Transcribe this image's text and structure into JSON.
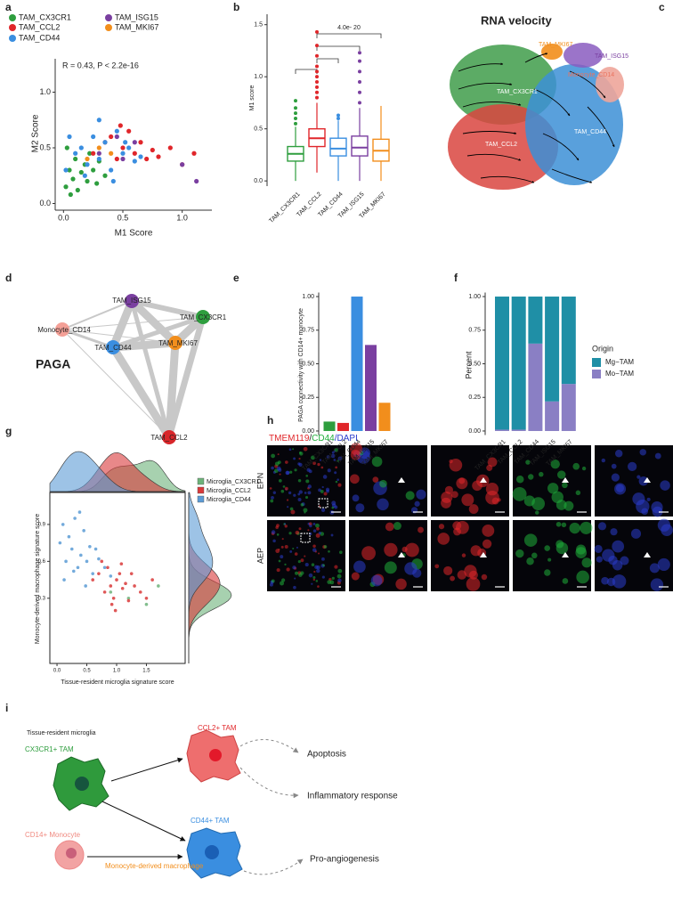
{
  "panel_labels": [
    "a",
    "b",
    "c",
    "d",
    "e",
    "f",
    "g",
    "h",
    "i"
  ],
  "chart_data": [
    {
      "type": "scatter",
      "xlabel": "M1 Score",
      "ylabel": "M2 Score",
      "annotation": "R = 0.43, P < 2.2e-16",
      "xlim": [
        -0.07,
        1.25
      ],
      "ylim": [
        -0.06,
        1.3
      ],
      "xticks": [
        {
          "value": 0,
          "label": "0.0"
        },
        {
          "value": 0.5,
          "label": "0.5"
        },
        {
          "value": 1,
          "label": "1.0"
        }
      ],
      "yticks": [
        {
          "value": 0,
          "label": "0.0"
        },
        {
          "value": 0.5,
          "label": "0.5"
        },
        {
          "value": 1,
          "label": "1.0"
        }
      ],
      "series": [
        {
          "name": "TAM_CX3CR1",
          "color": "#2e9e3e",
          "x": [
            0.02,
            0.05,
            0.08,
            0.1,
            0.12,
            0.15,
            0.18,
            0.2,
            0.22,
            0.25,
            0.28,
            0.3,
            0.03,
            0.06,
            0.35
          ],
          "values": [
            0.15,
            0.3,
            0.22,
            0.4,
            0.12,
            0.28,
            0.35,
            0.2,
            0.45,
            0.3,
            0.18,
            0.38,
            0.5,
            0.08,
            0.25
          ]
        },
        {
          "name": "TAM_CCL2",
          "color": "#e0262a",
          "x": [
            0.25,
            0.35,
            0.4,
            0.45,
            0.5,
            0.55,
            0.6,
            0.65,
            0.7,
            0.75,
            0.8,
            0.9,
            1.0,
            1.1,
            0.48
          ],
          "values": [
            0.45,
            0.55,
            0.6,
            0.4,
            0.5,
            0.65,
            0.45,
            0.55,
            0.4,
            0.48,
            0.42,
            0.5,
            0.35,
            0.45,
            0.7
          ]
        },
        {
          "name": "TAM_CD44",
          "color": "#3a8ee0",
          "x": [
            0.02,
            0.1,
            0.15,
            0.2,
            0.25,
            0.3,
            0.35,
            0.4,
            0.45,
            0.5,
            0.55,
            0.6,
            0.65,
            0.05,
            0.3,
            0.42,
            0.18,
            0.52
          ],
          "values": [
            0.3,
            0.45,
            0.5,
            0.35,
            0.6,
            0.4,
            0.55,
            0.3,
            0.65,
            0.45,
            0.5,
            0.38,
            0.42,
            0.6,
            0.75,
            0.2,
            0.25,
            0.55
          ]
        },
        {
          "name": "TAM_ISG15",
          "color": "#7a3fa0",
          "x": [
            0.3,
            0.45,
            0.6,
            1.0,
            1.12,
            0.5
          ],
          "values": [
            0.45,
            0.6,
            0.55,
            0.35,
            0.2,
            0.4
          ]
        },
        {
          "name": "TAM_MKI67",
          "color": "#f28e1c",
          "x": [
            0.2,
            0.3,
            0.4
          ],
          "values": [
            0.4,
            0.5,
            0.45
          ]
        }
      ]
    },
    {
      "type": "box",
      "ylabel": "M1 score",
      "annotation": "4.0e- 20",
      "ylim": [
        -0.05,
        1.6
      ],
      "yticks": [
        {
          "value": 0,
          "label": "0.0"
        },
        {
          "value": 0.5,
          "label": "0.5"
        },
        {
          "value": 1,
          "label": "1.0"
        },
        {
          "value": 1.5,
          "label": "1.5"
        }
      ],
      "series": [
        {
          "name": "TAM_CX3CR1",
          "color": "#2e9e3e",
          "min": 0.0,
          "q1": 0.19,
          "median": 0.26,
          "q3": 0.33,
          "max": 0.52,
          "outliers": [
            0.55,
            0.6,
            0.65,
            0.7,
            0.77
          ]
        },
        {
          "name": "TAM_CCL2",
          "color": "#e0262a",
          "min": 0.08,
          "q1": 0.33,
          "median": 0.41,
          "q3": 0.5,
          "max": 0.75,
          "outliers": [
            0.8,
            0.85,
            0.9,
            0.95,
            1.0,
            1.05,
            1.1,
            1.2,
            1.3,
            1.43
          ]
        },
        {
          "name": "TAM_CD44",
          "color": "#3a8ee0",
          "min": 0.0,
          "q1": 0.24,
          "median": 0.31,
          "q3": 0.41,
          "max": 0.58,
          "outliers": [
            0.6,
            0.63
          ]
        },
        {
          "name": "TAM_ISG15",
          "color": "#7a3fa0",
          "min": 0.0,
          "q1": 0.24,
          "median": 0.32,
          "q3": 0.43,
          "max": 0.7,
          "outliers": [
            0.75,
            0.85,
            0.95,
            1.05,
            1.15,
            1.23
          ]
        },
        {
          "name": "TAM_MKI67",
          "color": "#f28e1c",
          "min": 0.0,
          "q1": 0.19,
          "median": 0.29,
          "q3": 0.4,
          "max": 0.72,
          "outliers": []
        }
      ]
    },
    {
      "type": "bar",
      "ylabel": "PAGA connectivity with CD14+ monocyte",
      "categories": [
        "TAM_CX3CR1",
        "TAM_CCL2",
        "TAM_CD44",
        "TAM_ISG15",
        "TAM_MKI67"
      ],
      "values": [
        0.07,
        0.06,
        1.0,
        0.64,
        0.21
      ],
      "colors": [
        "#2e9e3e",
        "#e0262a",
        "#3a8ee0",
        "#7a3fa0",
        "#f28e1c"
      ],
      "ylim": [
        -0.03,
        1.03
      ],
      "yticks": [
        {
          "value": 0,
          "label": "0.00"
        },
        {
          "value": 0.25,
          "label": "0.25"
        },
        {
          "value": 0.5,
          "label": "0.50"
        },
        {
          "value": 0.75,
          "label": "0.75"
        },
        {
          "value": 1,
          "label": "1.00"
        }
      ]
    },
    {
      "type": "stacked_bar",
      "ylabel": "Percent",
      "legend_title": "Origin",
      "categories": [
        "TAM_CX3CR1",
        "TAM_CCL2",
        "TAM_CD44",
        "TAM_ISG15",
        "TAM_MKI67"
      ],
      "series": [
        {
          "name": "Mg−TAM",
          "color": "#1f8fa6",
          "values": [
            0.99,
            0.99,
            0.35,
            0.78,
            0.65
          ]
        },
        {
          "name": "Mo−TAM",
          "color": "#8a7fc4",
          "values": [
            0.01,
            0.01,
            0.65,
            0.22,
            0.35
          ]
        }
      ],
      "ylim": [
        -0.03,
        1.03
      ],
      "yticks": [
        {
          "value": 0,
          "label": "0.00"
        },
        {
          "value": 0.25,
          "label": "0.25"
        },
        {
          "value": 0.5,
          "label": "0.50"
        },
        {
          "value": 0.75,
          "label": "0.75"
        },
        {
          "value": 1,
          "label": "1.00"
        }
      ]
    },
    {
      "type": "scatter_density",
      "xlabel": "Tissue-resident microglia signature score",
      "ylabel": "Monocyte-derived macrophage signature score",
      "xlim": [
        -0.12,
        2.15
      ],
      "ylim": [
        -0.23,
        1.16
      ],
      "xticks": [
        {
          "value": 0,
          "label": "0.0"
        },
        {
          "value": 0.5,
          "label": "0.5"
        },
        {
          "value": 1,
          "label": "1.0"
        },
        {
          "value": 1.5,
          "label": "1.5"
        }
      ],
      "yticks": [
        0.3,
        0.6,
        0.9
      ],
      "series": [
        {
          "name": "Microglia_CX3CR1",
          "color": "#6db37a",
          "x": [
            0.9,
            1.2,
            1.5,
            1.7
          ],
          "values": [
            0.35,
            0.3,
            0.25,
            0.4
          ]
        },
        {
          "name": "Microglia_CCL2",
          "color": "#d9393a",
          "x": [
            0.6,
            0.7,
            0.8,
            0.85,
            0.9,
            0.95,
            1.0,
            1.05,
            1.1,
            1.15,
            1.2,
            1.3,
            1.4,
            1.5,
            1.6,
            0.75,
            0.92,
            1.08,
            1.25,
            0.98
          ],
          "values": [
            0.45,
            0.5,
            0.35,
            0.55,
            0.4,
            0.3,
            0.45,
            0.5,
            0.38,
            0.42,
            0.28,
            0.4,
            0.35,
            0.3,
            0.45,
            0.6,
            0.25,
            0.58,
            0.5,
            0.2
          ]
        },
        {
          "name": "Microglia_CD44",
          "color": "#5b9bd5",
          "x": [
            0.05,
            0.1,
            0.15,
            0.2,
            0.25,
            0.3,
            0.35,
            0.4,
            0.45,
            0.5,
            0.55,
            0.6,
            0.7,
            0.8,
            0.9,
            0.12,
            0.28,
            0.38,
            0.48,
            0.65
          ],
          "values": [
            0.75,
            0.9,
            0.6,
            0.8,
            0.7,
            0.95,
            0.55,
            0.65,
            0.85,
            0.6,
            0.72,
            0.5,
            0.62,
            0.55,
            0.48,
            0.45,
            0.52,
            1.0,
            0.4,
            0.7
          ]
        }
      ]
    }
  ],
  "velocity": {
    "title": "RNA velocity",
    "clusters": [
      "TAM_MKI67",
      "TAM_ISG15",
      "Monocyte_CD14",
      "TAM_CX3CR1",
      "TAM_CCL2",
      "TAM_CD44"
    ]
  },
  "paga": {
    "title": "PAGA",
    "nodes": [
      "TAM_ISG15",
      "TAM_CX3CR1",
      "Monocyte_CD14",
      "TAM_CD44",
      "TAM_MKI67",
      "TAM_CCL2"
    ]
  },
  "microscopy": {
    "stain": [
      "TMEM119",
      "/",
      "CD44",
      "/DAPI"
    ],
    "rows": [
      "EPN",
      "AEP"
    ]
  },
  "schematic": {
    "group": "Tissue-resident microglia",
    "cells": [
      "CX3CR1+ TAM",
      "CCL2+ TAM",
      "CD44+ TAM",
      "CD14+ Monocyte"
    ],
    "transition": "Monocyte-derived macrophage",
    "outcomes": [
      "Apoptosis",
      "Inflammatory response",
      "Pro-angiogenesis"
    ]
  }
}
